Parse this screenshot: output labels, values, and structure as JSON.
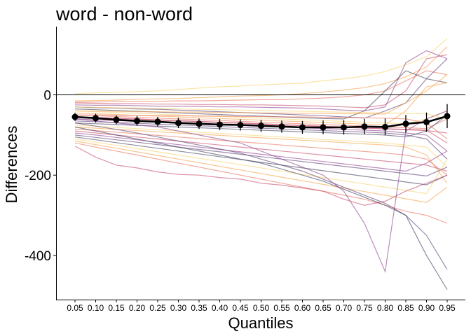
{
  "chart_data": {
    "type": "line",
    "title": "word - non-word",
    "xlabel": "Quantiles",
    "ylabel": "Differences",
    "ylim": [
      -510,
      170
    ],
    "yticks": [
      0,
      -200,
      -400
    ],
    "ytick_labels": [
      "0",
      "-200",
      "-400"
    ],
    "x": [
      "0.05",
      "0.10",
      "0.15",
      "0.20",
      "0.25",
      "0.30",
      "0.35",
      "0.40",
      "0.45",
      "0.50",
      "0.55",
      "0.60",
      "0.65",
      "0.70",
      "0.75",
      "0.80",
      "0.85",
      "0.90",
      "0.95"
    ],
    "reference_line": 0,
    "grid": false,
    "colors": [
      "#f7d26a",
      "#f5a04a",
      "#e8725a",
      "#c74a6a",
      "#8e3f8f",
      "#5a3b74",
      "#3d3d5c"
    ],
    "individual_series": [
      {
        "values": [
          3,
          5,
          6,
          8,
          10,
          13,
          17,
          20,
          22,
          25,
          27,
          29,
          35,
          40,
          47,
          58,
          75,
          95,
          140
        ]
      },
      {
        "values": [
          -15,
          -14,
          -13,
          -11,
          -10,
          -9,
          -7,
          -5,
          -3,
          -2,
          0,
          3,
          7,
          12,
          18,
          28,
          45,
          70,
          120
        ]
      },
      {
        "values": [
          -18,
          -18,
          -17,
          -16,
          -16,
          -15,
          -15,
          -14,
          -13,
          -12,
          -12,
          -10,
          -8,
          -5,
          0,
          10,
          35,
          60,
          50
        ]
      },
      {
        "values": [
          -20,
          -21,
          -22,
          -22,
          -23,
          -23,
          -24,
          -24,
          -25,
          -25,
          -26,
          -27,
          -28,
          -30,
          -32,
          -25,
          10,
          90,
          100
        ]
      },
      {
        "values": [
          -25,
          -26,
          -26,
          -27,
          -28,
          -28,
          -29,
          -30,
          -30,
          -31,
          -32,
          -33,
          -35,
          -38,
          -40,
          -30,
          80,
          110,
          90
        ]
      },
      {
        "values": [
          -30,
          -32,
          -33,
          -35,
          -36,
          -38,
          -40,
          -42,
          -44,
          -46,
          -48,
          -50,
          -52,
          -55,
          -58,
          -40,
          -20,
          40,
          90
        ]
      },
      {
        "values": [
          -35,
          -37,
          -39,
          -41,
          -43,
          -45,
          -47,
          -49,
          -51,
          -53,
          -55,
          -57,
          -59,
          -60,
          -40,
          10,
          60,
          40,
          30
        ]
      },
      {
        "values": [
          -40,
          -42,
          -44,
          -46,
          -48,
          -50,
          -52,
          -54,
          -56,
          -58,
          -60,
          -62,
          -64,
          -66,
          -68,
          -70,
          -72,
          -60,
          -40
        ]
      },
      {
        "values": [
          -45,
          -47,
          -49,
          -51,
          -53,
          -55,
          -57,
          -59,
          -61,
          -63,
          -65,
          -67,
          -69,
          -71,
          -73,
          -75,
          -40,
          20,
          30
        ]
      },
      {
        "values": [
          -50,
          -52,
          -54,
          -56,
          -58,
          -60,
          -62,
          -64,
          -66,
          -68,
          -70,
          -72,
          -74,
          -76,
          -78,
          -80,
          -82,
          -84,
          -60
        ]
      },
      {
        "values": [
          -55,
          -56,
          -58,
          -60,
          -62,
          -64,
          -66,
          -68,
          -70,
          -72,
          -74,
          -76,
          -78,
          -80,
          -82,
          -84,
          -86,
          -88,
          -120
        ]
      },
      {
        "values": [
          -60,
          -62,
          -64,
          -66,
          -68,
          -70,
          -72,
          -74,
          -76,
          -78,
          -80,
          -82,
          -84,
          -86,
          -88,
          -90,
          -95,
          -100,
          -140
        ]
      },
      {
        "values": [
          -65,
          -67,
          -69,
          -71,
          -73,
          -75,
          -77,
          -79,
          -81,
          -83,
          -85,
          -87,
          -89,
          -91,
          -93,
          -95,
          -100,
          -110,
          -160
        ]
      },
      {
        "values": [
          -70,
          -72,
          -74,
          -76,
          -78,
          -80,
          -82,
          -84,
          -86,
          -88,
          -90,
          -92,
          -94,
          -96,
          -98,
          -100,
          -105,
          -90,
          -50
        ]
      },
      {
        "values": [
          -75,
          -78,
          -81,
          -84,
          -87,
          -90,
          -93,
          -96,
          -99,
          -102,
          -105,
          -108,
          -111,
          -114,
          -117,
          -120,
          -125,
          -130,
          -180
        ]
      },
      {
        "values": [
          -80,
          -83,
          -86,
          -89,
          -92,
          -95,
          -98,
          -101,
          -104,
          -107,
          -110,
          -113,
          -116,
          -119,
          -122,
          -125,
          -130,
          -150,
          -220
        ]
      },
      {
        "values": [
          -85,
          -89,
          -93,
          -97,
          -101,
          -105,
          -109,
          -113,
          -117,
          -121,
          -125,
          -129,
          -133,
          -137,
          -141,
          -145,
          -150,
          -160,
          -200
        ]
      },
      {
        "values": [
          -90,
          -95,
          -100,
          -105,
          -110,
          -115,
          -120,
          -125,
          -130,
          -135,
          -140,
          -145,
          -150,
          -155,
          -160,
          -165,
          -170,
          -175,
          -190
        ]
      },
      {
        "values": [
          -95,
          -100,
          -106,
          -112,
          -118,
          -124,
          -130,
          -136,
          -142,
          -148,
          -154,
          -160,
          -166,
          -172,
          -178,
          -184,
          -190,
          -170,
          -140
        ]
      },
      {
        "values": [
          -100,
          -106,
          -112,
          -118,
          -124,
          -130,
          -136,
          -142,
          -148,
          -154,
          -160,
          -166,
          -172,
          -178,
          -184,
          -190,
          -196,
          -202,
          -180
        ]
      },
      {
        "values": [
          -105,
          -112,
          -119,
          -126,
          -133,
          -140,
          -147,
          -154,
          -161,
          -168,
          -175,
          -182,
          -189,
          -196,
          -203,
          -210,
          -217,
          -224,
          -200
        ]
      },
      {
        "values": [
          -110,
          -118,
          -126,
          -134,
          -142,
          -150,
          -158,
          -166,
          -174,
          -182,
          -190,
          -198,
          -206,
          -214,
          -222,
          -230,
          -238,
          -246,
          -160
        ]
      },
      {
        "values": [
          -115,
          -124,
          -133,
          -142,
          -151,
          -160,
          -169,
          -178,
          -187,
          -196,
          -205,
          -214,
          -223,
          -232,
          -241,
          -250,
          -259,
          -268,
          -230
        ]
      },
      {
        "values": [
          -120,
          -130,
          -140,
          -150,
          -160,
          -170,
          -180,
          -190,
          -200,
          -210,
          -220,
          -230,
          -240,
          -250,
          -260,
          -275,
          -290,
          -300,
          -320
        ]
      },
      {
        "values": [
          -128,
          -155,
          -175,
          -182,
          -192,
          -198,
          -200,
          -206,
          -210,
          -220,
          -225,
          -232,
          -240,
          -260,
          -275,
          -265,
          -240,
          -220,
          -200
        ]
      },
      {
        "values": [
          -60,
          -65,
          -70,
          -75,
          -80,
          -90,
          -100,
          -110,
          -120,
          -140,
          -160,
          -180,
          -200,
          -240,
          -320,
          -440,
          -90,
          -60,
          -40
        ]
      },
      {
        "values": [
          -70,
          -78,
          -86,
          -95,
          -105,
          -115,
          -125,
          -135,
          -145,
          -160,
          -175,
          -190,
          -210,
          -230,
          -250,
          -270,
          -300,
          -350,
          -435
        ]
      },
      {
        "values": [
          -80,
          -90,
          -100,
          -110,
          -120,
          -130,
          -140,
          -150,
          -160,
          -170,
          -185,
          -200,
          -215,
          -235,
          -255,
          -275,
          -300,
          -400,
          -485
        ]
      },
      {
        "values": [
          -30,
          -31,
          -32,
          -33,
          -34,
          -35,
          -36,
          -37,
          -38,
          -39,
          -40,
          -41,
          -42,
          -43,
          -44,
          -45,
          -46,
          -47,
          -60
        ]
      },
      {
        "values": [
          -40,
          -41,
          -41,
          -42,
          -42,
          -43,
          -43,
          -44,
          -44,
          -45,
          -45,
          -46,
          -46,
          -47,
          -47,
          -48,
          -20,
          10,
          50
        ]
      },
      {
        "values": [
          -50,
          -50,
          -51,
          -51,
          -52,
          -52,
          -53,
          -53,
          -54,
          -54,
          -55,
          -55,
          -56,
          -56,
          -57,
          -58,
          -60,
          -70,
          -110
        ]
      },
      {
        "values": [
          -55,
          -57,
          -59,
          -61,
          -63,
          -65,
          -67,
          -69,
          -71,
          -73,
          -75,
          -77,
          -79,
          -81,
          -83,
          -85,
          -87,
          -89,
          -95
        ]
      }
    ],
    "mean_series": {
      "values": [
        -55,
        -58,
        -62,
        -65,
        -67,
        -70,
        -72,
        -74,
        -75,
        -77,
        -79,
        -81,
        -81,
        -81,
        -79,
        -80,
        -72,
        -68,
        -53
      ],
      "error": [
        10,
        11,
        11,
        12,
        12,
        13,
        13,
        14,
        14,
        15,
        15,
        16,
        17,
        18,
        19,
        21,
        22,
        24,
        30
      ]
    }
  }
}
